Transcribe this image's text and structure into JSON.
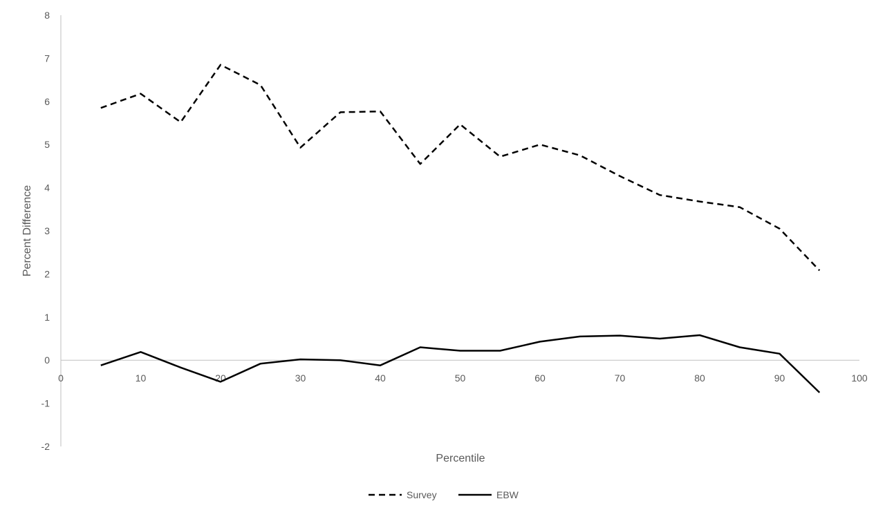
{
  "chart_data": {
    "type": "line",
    "title": "",
    "xlabel": "Percentile",
    "ylabel": "Percent Difference",
    "xlim": [
      0,
      100
    ],
    "ylim": [
      -2,
      8
    ],
    "x_ticks": [
      0,
      10,
      20,
      30,
      40,
      50,
      60,
      70,
      80,
      90,
      100
    ],
    "y_ticks": [
      -2,
      -1,
      0,
      1,
      2,
      3,
      4,
      5,
      6,
      7,
      8
    ],
    "grid": false,
    "legend_position": "bottom",
    "x": [
      5,
      10,
      15,
      20,
      25,
      30,
      35,
      40,
      45,
      50,
      55,
      60,
      65,
      70,
      75,
      80,
      85,
      90,
      95
    ],
    "series": [
      {
        "name": "Survey",
        "style": "dashed",
        "color": "#000000",
        "values": [
          5.85,
          6.18,
          5.52,
          6.85,
          6.38,
          4.93,
          5.75,
          5.77,
          4.55,
          5.47,
          4.72,
          5.0,
          4.75,
          4.27,
          3.83,
          3.68,
          3.55,
          3.05,
          2.08
        ]
      },
      {
        "name": "EBW",
        "style": "solid",
        "color": "#000000",
        "values": [
          -0.12,
          0.19,
          -0.17,
          -0.5,
          -0.08,
          0.02,
          0.0,
          -0.12,
          0.3,
          0.22,
          0.22,
          0.43,
          0.55,
          0.57,
          0.5,
          0.58,
          0.3,
          0.15,
          -0.75
        ]
      }
    ]
  }
}
